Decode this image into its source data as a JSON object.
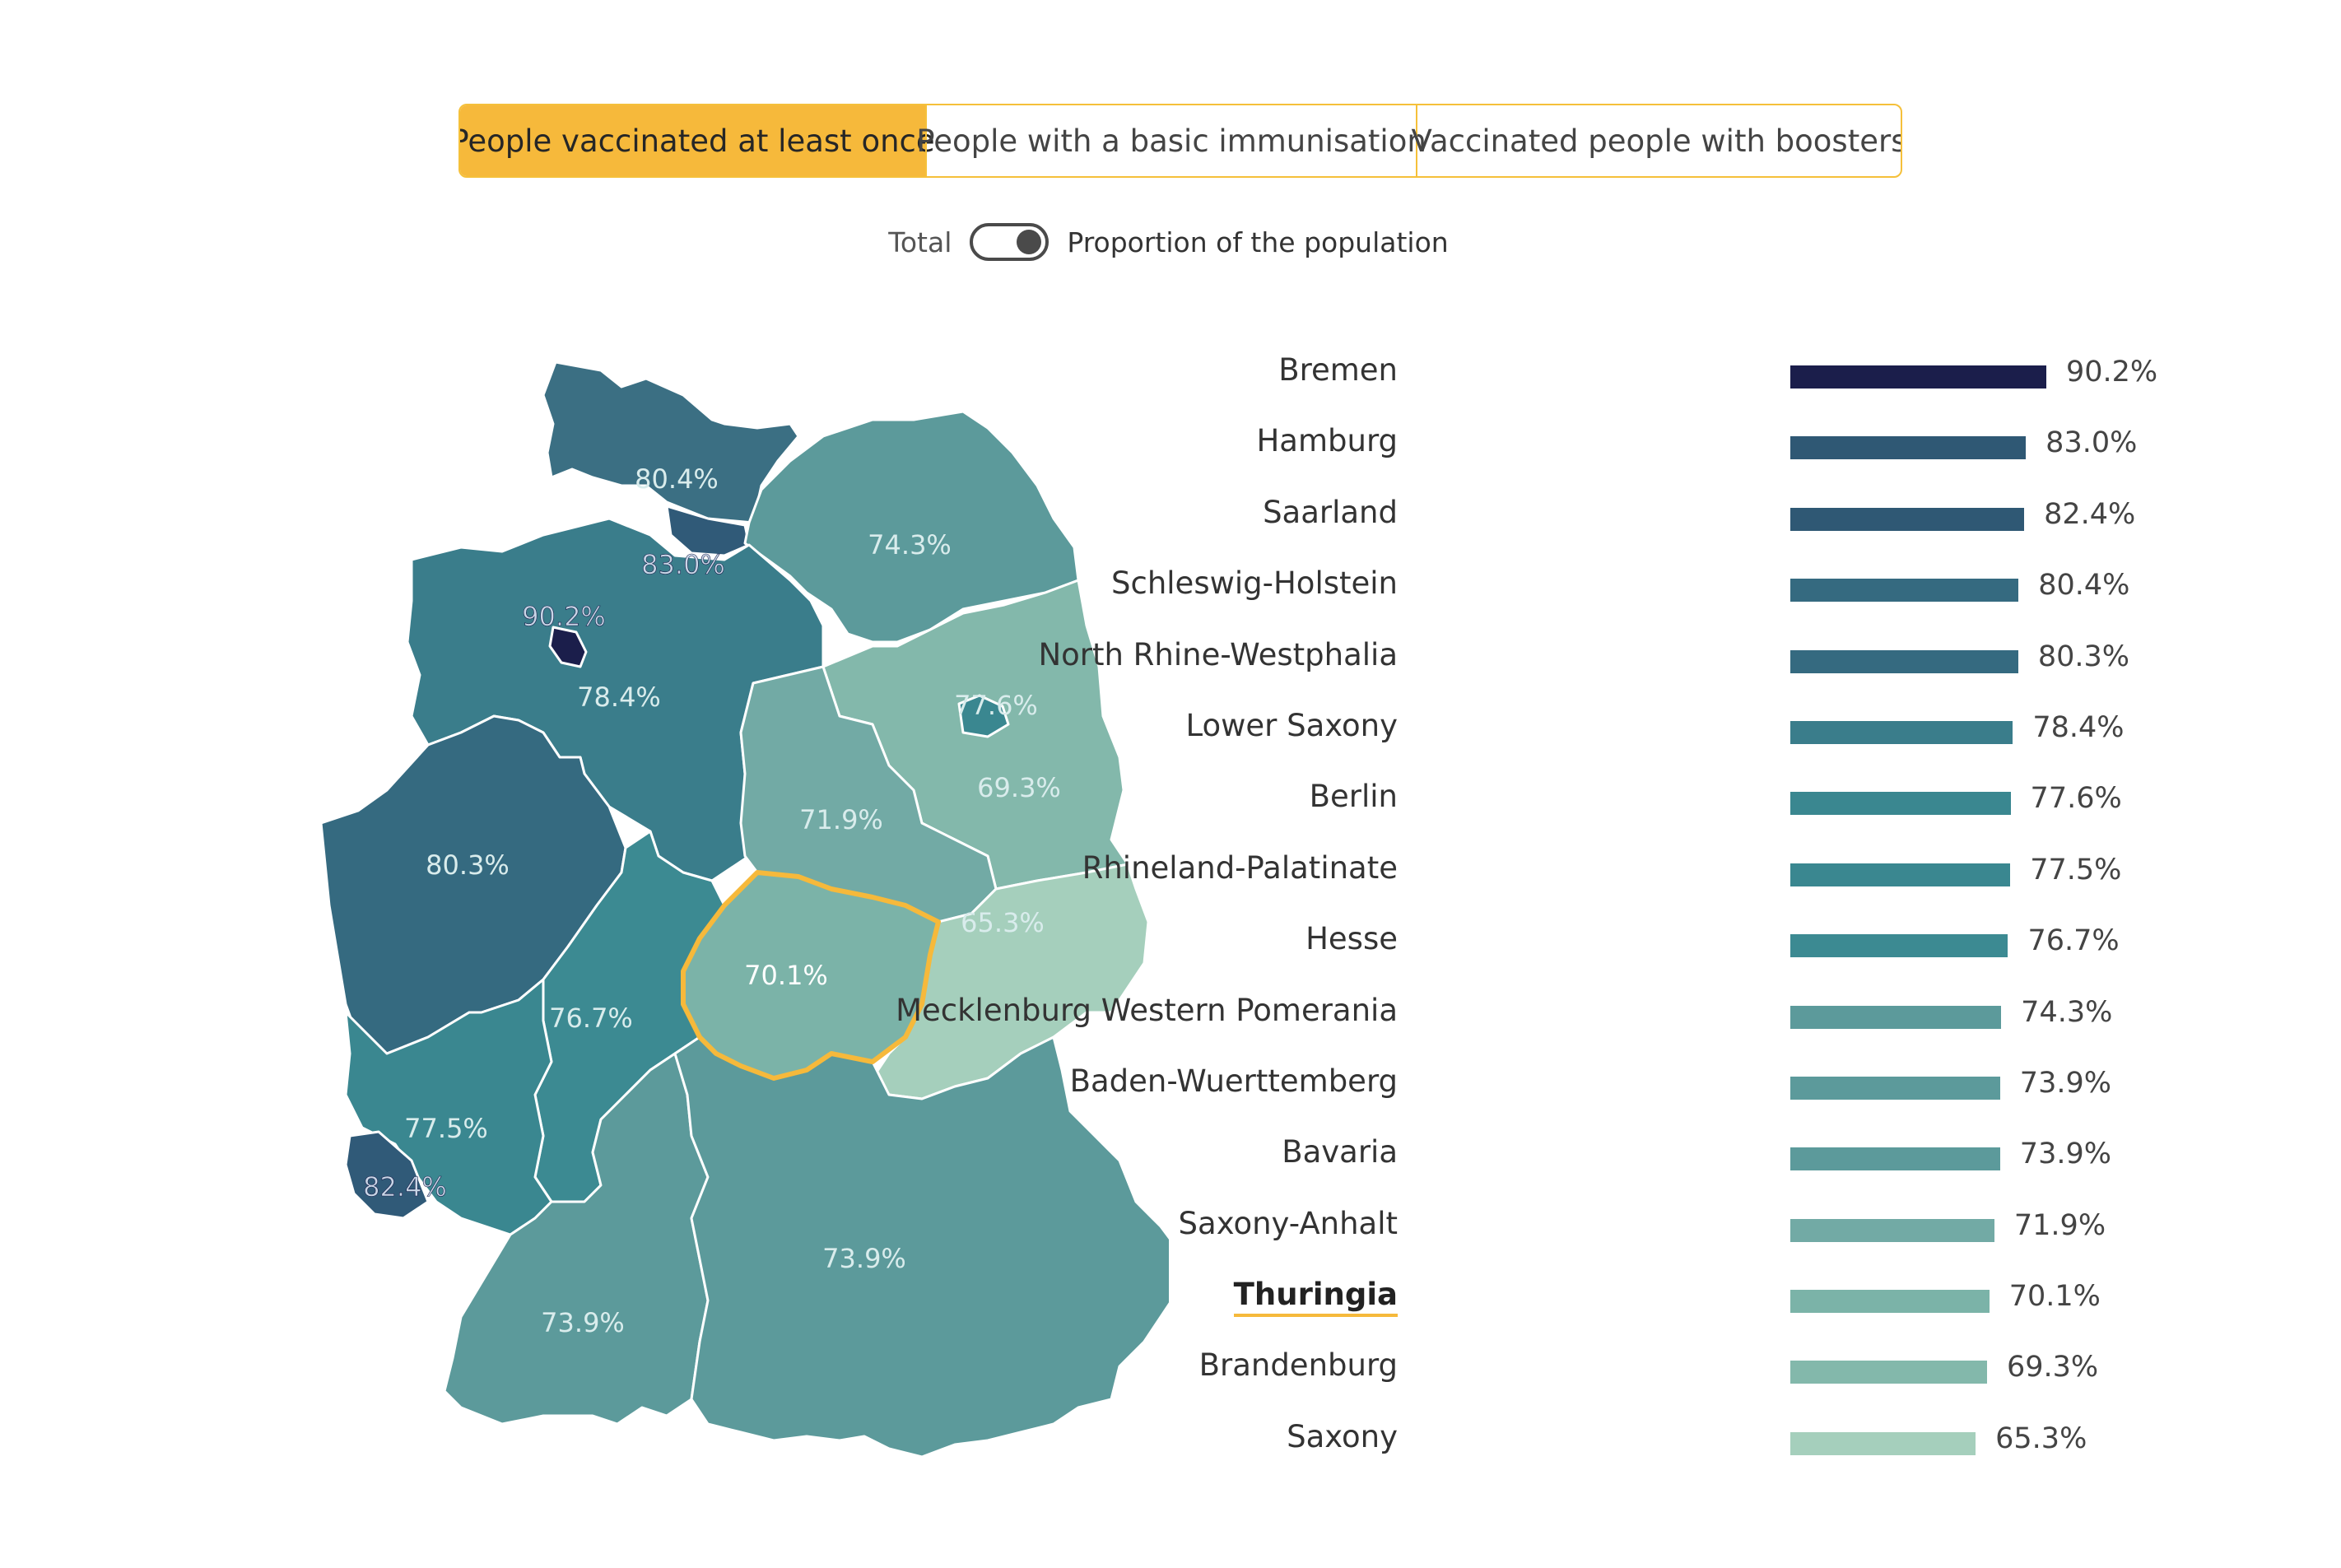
{
  "tabs": [
    {
      "label": "People vaccinated at least once",
      "active": true
    },
    {
      "label": "People with a basic immunisation",
      "active": false
    },
    {
      "label": "Vaccinated people with boosters",
      "active": false
    }
  ],
  "toggle": {
    "left_label": "Total",
    "right_label": "Proportion of the population",
    "selected": "Proportion of the population"
  },
  "colors": {
    "accent": "#f6b93b",
    "darkest": "#1b1e4b",
    "lightest": "#a5cfbc"
  },
  "map_labels": {
    "schleswig_holstein": "80.4%",
    "hamburg": "83.0%",
    "mecklenburg": "74.3%",
    "bremen": "90.2%",
    "lower_saxony": "78.4%",
    "berlin": "77.6%",
    "brandenburg": "69.3%",
    "saxony_anhalt": "71.9%",
    "nrw": "80.3%",
    "saxony": "65.3%",
    "thuringia": "70.1%",
    "hesse": "76.7%",
    "rhineland_palatinate": "77.5%",
    "saarland": "82.4%",
    "bavaria": "73.9%",
    "baden_wuerttemberg": "73.9%"
  },
  "chart_data": {
    "type": "bar",
    "orientation": "horizontal",
    "highlighted": "Thuringia",
    "categories": [
      "Bremen",
      "Hamburg",
      "Saarland",
      "Schleswig-Holstein",
      "North Rhine-Westphalia",
      "Lower Saxony",
      "Berlin",
      "Rhineland-Palatinate",
      "Hesse",
      "Mecklenburg Western Pomerania",
      "Baden-Wuerttemberg",
      "Bavaria",
      "Saxony-Anhalt",
      "Thuringia",
      "Brandenburg",
      "Saxony"
    ],
    "values": [
      90.2,
      83.0,
      82.4,
      80.4,
      80.3,
      78.4,
      77.6,
      77.5,
      76.7,
      74.3,
      73.9,
      73.9,
      71.9,
      70.1,
      69.3,
      65.3
    ],
    "value_labels": [
      "90.2%",
      "83.0%",
      "82.4%",
      "80.4%",
      "80.3%",
      "78.4%",
      "77.6%",
      "77.5%",
      "76.7%",
      "74.3%",
      "73.9%",
      "73.9%",
      "71.9%",
      "70.1%",
      "69.3%",
      "65.3%"
    ],
    "colors": [
      "#1b1e4b",
      "#2f5874",
      "#2f5874",
      "#356a80",
      "#356a80",
      "#3a7d8b",
      "#3a8790",
      "#3a8790",
      "#3c8a92",
      "#5c9a9b",
      "#5c9a9b",
      "#5c9a9b",
      "#72aaa5",
      "#7bb3a8",
      "#83b8ab",
      "#a5cfbc"
    ]
  }
}
